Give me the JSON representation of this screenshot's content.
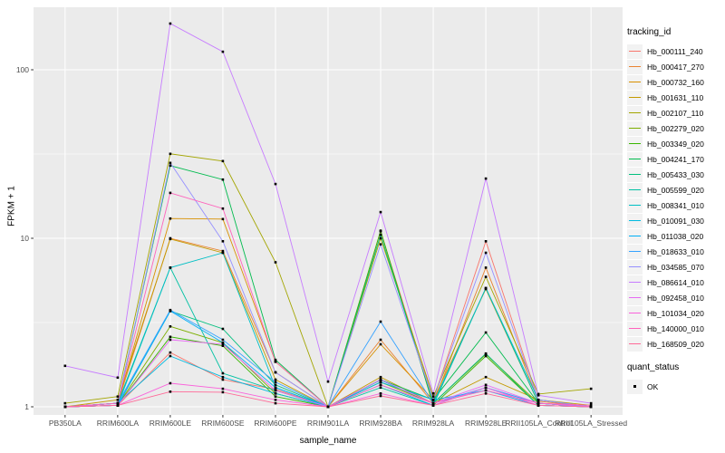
{
  "chart_data": {
    "type": "line",
    "title": "",
    "xlabel": "sample_name",
    "ylabel": "FPKM + 1",
    "yscale": "log10",
    "ylim": [
      0.9,
      230
    ],
    "yticks": [
      {
        "value": 1,
        "label": "1"
      },
      {
        "value": 10,
        "label": "10"
      },
      {
        "value": 100,
        "label": "100"
      }
    ],
    "minor_gridlines": [
      3.162,
      31.62
    ],
    "panel_bg": "#EBEBEB",
    "gridline_color": "#FFFFFF",
    "axis_text_color": "#4D4D4D",
    "point_marker": "filled-black-square",
    "legend_position": "right",
    "legend_title": "tracking_id",
    "categories": [
      "PB350LA",
      "RRIM600LA",
      "RRIM600LE",
      "RRIM600SE",
      "RRIM600PE",
      "RRIM901LA",
      "RRIM928BA",
      "RRIM928LA",
      "RRIM928LE",
      "RRII105LA_Control",
      "RRII105LA_Stressed"
    ],
    "series": [
      {
        "name": "Hb_000111_240",
        "color": "#F8766D",
        "values": [
          1.0,
          1.02,
          2.1,
          1.45,
          1.27,
          1.0,
          11.0,
          1.1,
          9.6,
          1.1,
          1.0
        ]
      },
      {
        "name": "Hb_000417_270",
        "color": "#EA8331",
        "values": [
          1.0,
          1.05,
          10.0,
          8.4,
          1.6,
          1.0,
          2.5,
          1.05,
          6.7,
          1.08,
          1.0
        ]
      },
      {
        "name": "Hb_000732_160",
        "color": "#D89000",
        "values": [
          1.0,
          1.05,
          13.1,
          13.0,
          1.85,
          1.0,
          2.35,
          1.1,
          5.0,
          1.05,
          1.0
        ]
      },
      {
        "name": "Hb_001631_110",
        "color": "#C49A00",
        "values": [
          1.0,
          1.1,
          9.9,
          8.2,
          1.45,
          1.0,
          1.5,
          1.05,
          1.5,
          1.1,
          1.02
        ]
      },
      {
        "name": "Hb_002107_110",
        "color": "#A3A500",
        "values": [
          1.05,
          1.15,
          31.7,
          28.7,
          7.2,
          1.0,
          10.0,
          1.15,
          5.9,
          1.19,
          1.28
        ]
      },
      {
        "name": "Hb_002279_020",
        "color": "#7CAE00",
        "values": [
          1.0,
          1.02,
          3.0,
          2.4,
          1.2,
          1.0,
          1.4,
          1.05,
          2.05,
          1.05,
          1.0
        ]
      },
      {
        "name": "Hb_003349_020",
        "color": "#39B600",
        "values": [
          1.0,
          1.02,
          2.6,
          2.3,
          1.15,
          1.0,
          11.1,
          1.02,
          2.0,
          1.02,
          1.0
        ]
      },
      {
        "name": "Hb_004241_170",
        "color": "#00BB4E",
        "values": [
          1.0,
          1.05,
          27.0,
          22.3,
          1.9,
          1.0,
          1.45,
          1.1,
          2.76,
          1.05,
          1.0
        ]
      },
      {
        "name": "Hb_005433_030",
        "color": "#00BF7D",
        "values": [
          1.0,
          1.02,
          3.7,
          2.9,
          1.35,
          1.0,
          10.5,
          1.05,
          2.07,
          1.02,
          1.0
        ]
      },
      {
        "name": "Hb_005599_020",
        "color": "#00C1A3",
        "values": [
          1.0,
          1.05,
          6.7,
          1.58,
          1.25,
          1.0,
          1.3,
          1.02,
          5.06,
          1.05,
          1.0
        ]
      },
      {
        "name": "Hb_008341_010",
        "color": "#00BFC4",
        "values": [
          1.0,
          1.02,
          6.7,
          8.2,
          1.3,
          1.0,
          1.44,
          1.05,
          5.06,
          1.1,
          1.0
        ]
      },
      {
        "name": "Hb_010091_030",
        "color": "#00BAE0",
        "values": [
          1.0,
          1.05,
          2.0,
          1.5,
          1.2,
          1.0,
          1.35,
          1.02,
          1.3,
          1.05,
          1.0
        ]
      },
      {
        "name": "Hb_011038_020",
        "color": "#00B0F6",
        "values": [
          1.0,
          1.02,
          3.7,
          2.4,
          1.3,
          1.0,
          1.4,
          1.1,
          1.25,
          1.02,
          1.0
        ]
      },
      {
        "name": "Hb_018633_010",
        "color": "#35A2FF",
        "values": [
          1.0,
          1.05,
          3.75,
          2.5,
          1.4,
          1.0,
          3.2,
          1.05,
          1.3,
          1.05,
          1.0
        ]
      },
      {
        "name": "Hb_034585_070",
        "color": "#9590FF",
        "values": [
          1.0,
          1.05,
          28.0,
          9.6,
          1.6,
          1.0,
          9.2,
          1.1,
          8.2,
          1.1,
          1.0
        ]
      },
      {
        "name": "Hb_086614_010",
        "color": "#C77CFF",
        "values": [
          1.75,
          1.49,
          188.0,
          128.0,
          21.0,
          1.41,
          14.3,
          1.2,
          22.6,
          1.17,
          1.05
        ]
      },
      {
        "name": "Hb_092458_010",
        "color": "#E76BF3",
        "values": [
          1.0,
          1.02,
          2.5,
          2.35,
          1.25,
          1.0,
          1.45,
          1.05,
          1.35,
          1.05,
          1.0
        ]
      },
      {
        "name": "Hb_101034_020",
        "color": "#FA62DB",
        "values": [
          1.0,
          1.02,
          1.38,
          1.28,
          1.1,
          1.0,
          1.2,
          1.02,
          1.3,
          1.02,
          1.0
        ]
      },
      {
        "name": "Hb_140000_010",
        "color": "#FF62BC",
        "values": [
          1.0,
          1.05,
          18.6,
          15.0,
          1.85,
          1.0,
          1.35,
          1.05,
          1.25,
          1.05,
          1.02
        ]
      },
      {
        "name": "Hb_168509_020",
        "color": "#FF6A98",
        "values": [
          1.0,
          1.02,
          1.23,
          1.22,
          1.05,
          1.0,
          1.16,
          1.02,
          1.2,
          1.02,
          1.0
        ]
      }
    ],
    "legend2": {
      "title": "quant_status",
      "items": [
        {
          "label": "OK",
          "marker": "filled-square",
          "color": "#000000"
        }
      ]
    }
  }
}
